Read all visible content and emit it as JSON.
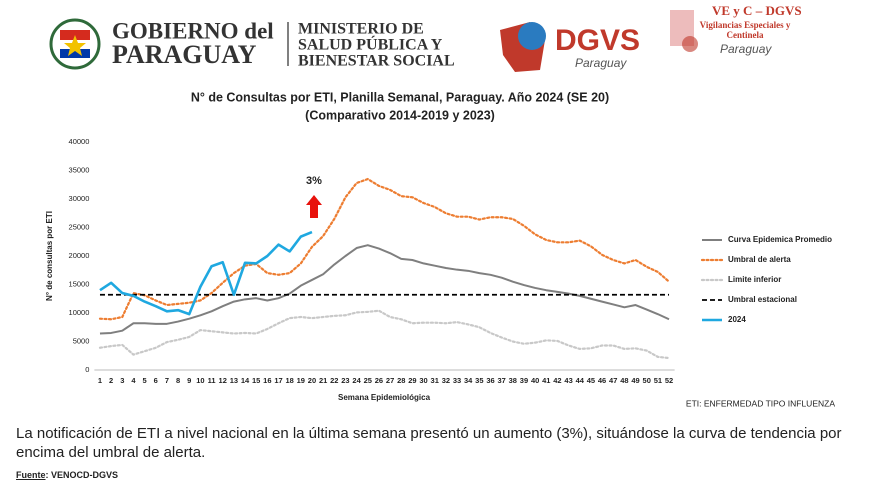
{
  "header": {
    "gov_line1": "GOBIERNO del",
    "gov_line2": "PARAGUAY",
    "ministry": [
      "MINISTERIO DE",
      "SALUD PÚBLICA Y",
      "BIENESTAR SOCIAL"
    ],
    "dgvs": "DGVS",
    "dgvs_sub": "Paraguay",
    "vec_title": "VE y C – DGVS",
    "vec_sub": [
      "Vigilancias Especiales y",
      "Centinela"
    ],
    "vec_country": "Paraguay"
  },
  "chart_data": {
    "type": "line",
    "title": "N° de Consultas por ETI, Planilla Semanal, Paraguay. Año 2024  (SE 20)",
    "subtitle": "(Comparativo 2014-2019 y 2023)",
    "x_label": "Semana Epidemiológica",
    "y_label": "N° de consultas por ETI",
    "annotation": "3%",
    "x": [
      1,
      2,
      3,
      4,
      5,
      6,
      7,
      8,
      9,
      10,
      11,
      12,
      13,
      14,
      15,
      16,
      17,
      18,
      19,
      20,
      21,
      22,
      23,
      24,
      25,
      26,
      27,
      28,
      29,
      30,
      31,
      32,
      33,
      34,
      35,
      36,
      37,
      38,
      39,
      40,
      41,
      42,
      43,
      44,
      45,
      46,
      47,
      48,
      49,
      50,
      51,
      52
    ],
    "xlim": [
      0.5,
      52.5
    ],
    "ylim": [
      0,
      40000
    ],
    "yticks": [
      0,
      5000,
      10000,
      15000,
      20000,
      25000,
      30000,
      35000,
      40000
    ],
    "legend": "right",
    "series": [
      {
        "name": "Curva Epidemica Promedio",
        "color": "#7f7f7f",
        "style": "solid",
        "values": [
          6400,
          6500,
          6900,
          8200,
          8200,
          8100,
          8100,
          8500,
          9000,
          9600,
          10300,
          11200,
          12000,
          12400,
          12600,
          12200,
          12600,
          13400,
          14800,
          15800,
          16800,
          18500,
          20000,
          21400,
          21900,
          21300,
          20500,
          19500,
          19300,
          18700,
          18300,
          17900,
          17600,
          17400,
          17000,
          16700,
          16200,
          15500,
          14900,
          14400,
          14000,
          13700,
          13400,
          13000,
          12500,
          12000,
          11500,
          11000,
          11400,
          10600,
          9800,
          8900
        ]
      },
      {
        "name": "Umbral de alerta",
        "color": "#ed7d31",
        "style": "dotted",
        "values": [
          9000,
          8900,
          9300,
          13500,
          13100,
          12200,
          11400,
          11600,
          11800,
          12200,
          13500,
          15300,
          17000,
          18300,
          18600,
          17000,
          16700,
          17000,
          18700,
          21600,
          23500,
          26500,
          30300,
          32800,
          33500,
          32300,
          31600,
          30500,
          30300,
          29300,
          28600,
          27500,
          26900,
          26900,
          26400,
          26800,
          26800,
          26500,
          25300,
          23800,
          22800,
          22400,
          22400,
          22700,
          21700,
          20200,
          19300,
          18700,
          19300,
          18100,
          17200,
          15500
        ]
      },
      {
        "name": "Limite inferior",
        "color": "#c8c8c8",
        "style": "dotted",
        "values": [
          3900,
          4200,
          4400,
          2700,
          3300,
          3900,
          4900,
          5300,
          5800,
          7000,
          6800,
          6600,
          6400,
          6500,
          6400,
          7200,
          8200,
          9100,
          9300,
          9100,
          9300,
          9500,
          9600,
          10100,
          10200,
          10400,
          9300,
          8900,
          8200,
          8300,
          8300,
          8200,
          8400,
          8000,
          7500,
          6500,
          5700,
          5000,
          4600,
          4800,
          5200,
          5100,
          4300,
          3700,
          3800,
          4300,
          4300,
          3700,
          3800,
          3400,
          2300,
          2100
        ]
      },
      {
        "name": "Umbral estacional",
        "color": "#000000",
        "style": "dashed",
        "values": [
          13200,
          13200,
          13200,
          13200,
          13200,
          13200,
          13200,
          13200,
          13200,
          13200,
          13200,
          13200,
          13200,
          13200,
          13200,
          13200,
          13200,
          13200,
          13200,
          13200,
          13200,
          13200,
          13200,
          13200,
          13200,
          13200,
          13200,
          13200,
          13200,
          13200,
          13200,
          13200,
          13200,
          13200,
          13200,
          13200,
          13200,
          13200,
          13200,
          13200,
          13200,
          13200,
          13200,
          13200,
          13200,
          13200,
          13200,
          13200,
          13200,
          13200,
          13200,
          13200
        ]
      },
      {
        "name": "2024",
        "color": "#1fa8e0",
        "style": "thick",
        "values": [
          14000,
          15300,
          13500,
          13000,
          12000,
          11200,
          10300,
          10500,
          9800,
          14600,
          18200,
          18900,
          13200,
          18800,
          18700,
          20000,
          22000,
          20800,
          23400,
          24200,
          null,
          null,
          null,
          null,
          null,
          null,
          null,
          null,
          null,
          null,
          null,
          null,
          null,
          null,
          null,
          null,
          null,
          null,
          null,
          null,
          null,
          null,
          null,
          null,
          null,
          null,
          null,
          null,
          null,
          null,
          null,
          null
        ]
      }
    ]
  },
  "note": "ETI: ENFERMEDAD TIPO INFLUENZA",
  "body": "La notificación de ETI a nivel nacional en la última semana presentó un aumento (3%), situándose la curva de tendencia por encima del umbral de alerta.",
  "source_label": "Fuente",
  "source": ": VENOCD-DGVS"
}
